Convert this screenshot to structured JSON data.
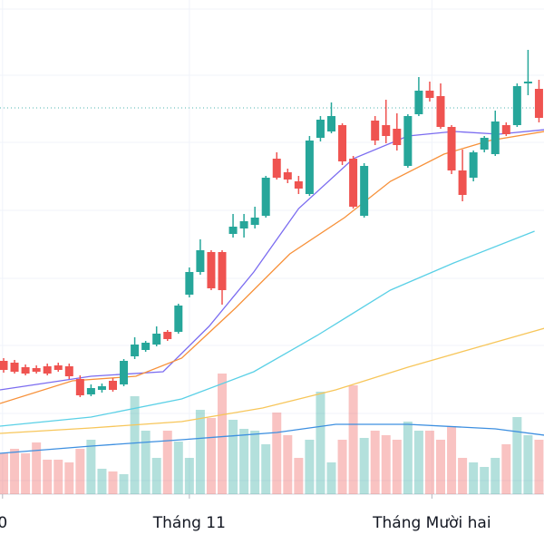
{
  "chart_data": {
    "type": "candlestick",
    "x_labels": [
      {
        "index": -0.1,
        "label": "0"
      },
      {
        "index": 17,
        "label": "Tháng 11"
      },
      {
        "index": 39.2,
        "label": "Tháng Mười hai"
      }
    ],
    "open": [
      147,
      145,
      140,
      139,
      141,
      142,
      141,
      127,
      110,
      115,
      125,
      121,
      152,
      159,
      165,
      179,
      179,
      220,
      245,
      267,
      267,
      287,
      293,
      297,
      307,
      370,
      355,
      345,
      331,
      393,
      400,
      407,
      370,
      307,
      412,
      407,
      403,
      362,
      419,
      445,
      439,
      405,
      357,
      349,
      380,
      375,
      407,
      407,
      453,
      447
    ],
    "high": [
      150,
      148,
      143,
      142,
      144,
      145,
      144,
      131,
      121,
      122,
      128,
      149,
      173,
      169,
      185,
      181,
      210,
      250,
      281,
      269,
      269,
      309,
      309,
      317,
      351,
      377,
      359,
      351,
      395,
      417,
      432,
      409,
      373,
      365,
      417,
      435,
      420,
      419,
      460,
      455,
      453,
      407,
      380,
      379,
      395,
      423,
      410,
      453,
      490,
      457
    ],
    "low": [
      134,
      133,
      131,
      133,
      131,
      135,
      127,
      107,
      108,
      112,
      113,
      119,
      149,
      157,
      163,
      169,
      177,
      217,
      242,
      225,
      209,
      283,
      283,
      293,
      305,
      347,
      343,
      331,
      329,
      389,
      398,
      363,
      315,
      305,
      385,
      387,
      379,
      360,
      417,
      433,
      403,
      353,
      323,
      345,
      377,
      373,
      395,
      405,
      440,
      410
    ],
    "close": [
      137,
      135,
      133,
      135,
      133,
      137,
      130,
      109,
      117,
      119,
      115,
      147,
      165,
      167,
      177,
      171,
      208,
      245,
      269,
      227,
      225,
      295,
      301,
      305,
      349,
      349,
      347,
      337,
      390,
      413,
      417,
      367,
      317,
      362,
      390,
      395,
      385,
      417,
      445,
      437,
      405,
      357,
      330,
      377,
      393,
      411,
      397,
      450,
      455,
      415
    ],
    "volume": [
      45,
      50,
      45,
      57,
      38,
      38,
      35,
      50,
      60,
      28,
      25,
      22,
      108,
      70,
      40,
      70,
      58,
      40,
      93,
      84,
      133,
      82,
      72,
      70,
      55,
      90,
      65,
      40,
      60,
      113,
      35,
      60,
      120,
      62,
      70,
      65,
      60,
      80,
      70,
      70,
      60,
      75,
      40,
      35,
      30,
      40,
      55,
      85,
      65,
      60
    ],
    "up_color": "#26a69a",
    "down_color": "#ef5350",
    "lines": [
      {
        "color": "#7b6cf0",
        "x": [
          -0.33,
          8,
          14.6,
          18.8,
          22.9,
          27,
          32,
          37,
          41.2,
          45.3,
          49.5
        ],
        "values": [
          115,
          130,
          135,
          185,
          245,
          315,
          370,
          395,
          400,
          397,
          402
        ]
      },
      {
        "color": "#f7913a",
        "x": [
          -0.33,
          6.3,
          12.1,
          16.3,
          21.2,
          26.2,
          31.2,
          35.4,
          40.3,
          44.5,
          49.5
        ],
        "values": [
          100,
          125,
          130,
          150,
          205,
          265,
          305,
          345,
          375,
          390,
          400
        ]
      },
      {
        "color": "#5ad0e6",
        "x": [
          -0.33,
          8,
          16.3,
          22.9,
          28.7,
          35.4,
          41.2,
          48.6
        ],
        "values": [
          75,
          85,
          105,
          135,
          175,
          225,
          255,
          290
        ]
      },
      {
        "color": "#f7c65a",
        "x": [
          -0.33,
          8,
          16.3,
          23.7,
          30.4,
          37,
          42.8,
          49.5
        ],
        "values": [
          67,
          73,
          80,
          95,
          115,
          140,
          160,
          183
        ]
      },
      {
        "color": "#3d8fe0",
        "x": [
          -0.33,
          8,
          16.3,
          25,
          30.4,
          37,
          45,
          49.5
        ],
        "values": [
          45,
          53,
          60,
          68,
          77,
          77,
          72,
          65
        ],
        "axis": "volume"
      }
    ],
    "price_line": 426,
    "price_line_color": "#4fb6b0",
    "grid_y": [
      535,
      462,
      388,
      313,
      238,
      164,
      89,
      15
    ],
    "ylim": [
      0,
      545
    ],
    "vlim": [
      0,
      545
    ]
  }
}
